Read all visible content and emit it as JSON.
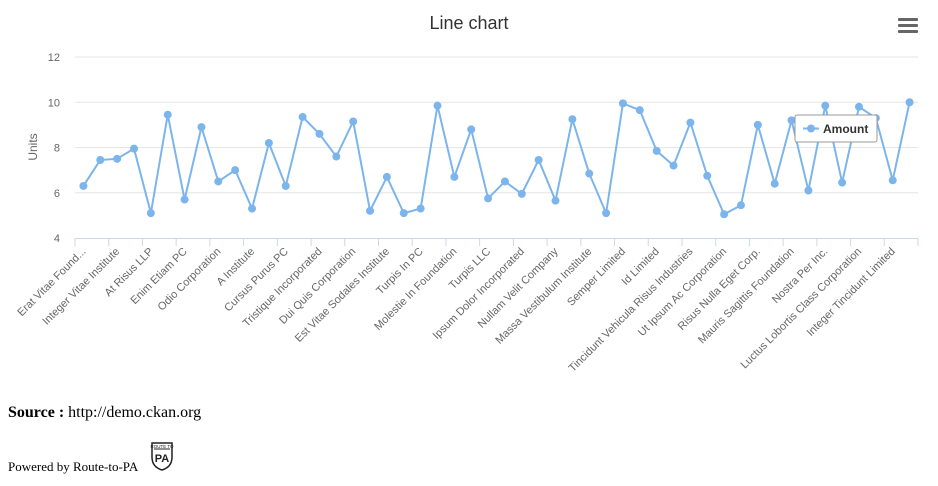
{
  "chart_data": {
    "type": "line",
    "title": "Line chart",
    "ylabel": "Units",
    "ylim": [
      4,
      12
    ],
    "yticks": [
      4,
      6,
      8,
      10,
      12
    ],
    "grid": true,
    "legend": "top-right",
    "categories": [
      "Erat Vitae Found...",
      "",
      "Integer Vitae Institute",
      "",
      "At Risus LLP",
      "",
      "Enim Etiam PC",
      "",
      "Odio Corporation",
      "",
      "A Institute",
      "",
      "Cursus Purus PC",
      "",
      "Tristique Incorporated",
      "",
      "Dui Quis Corporation",
      "",
      "Est Vitae Sodales Institute",
      "",
      "Turpis In PC",
      "",
      "Molestie In Foundation",
      "",
      "Turpis LLC",
      "",
      "Ipsum Dolor Incorporated",
      "",
      "Nullam Velit Company",
      "",
      "Massa Vestibulum Institute",
      "",
      "Semper Limited",
      "",
      "Id Limited",
      "",
      "Tincidunt Vehicula Risus Industries",
      "",
      "Ut Ipsum Ac Corporation",
      "",
      "Risus Nulla Eget Corp.",
      "",
      "Mauris Sagittis Foundation",
      "",
      "Nostra Per Inc.",
      "",
      "Luctus Lobortis Class Corporation",
      "",
      "Integer Tincidunt Limited",
      ""
    ],
    "series": [
      {
        "name": "Amount",
        "color": "#7cb5ec",
        "values": [
          6.3,
          7.45,
          7.5,
          7.95,
          5.1,
          9.45,
          5.7,
          8.9,
          6.5,
          7.0,
          5.3,
          8.2,
          6.3,
          9.35,
          8.6,
          7.6,
          9.15,
          5.2,
          6.7,
          5.1,
          5.3,
          9.85,
          6.7,
          8.8,
          5.75,
          6.5,
          5.95,
          7.45,
          5.65,
          9.25,
          6.85,
          5.1,
          9.95,
          9.65,
          7.85,
          7.2,
          9.1,
          6.75,
          5.05,
          5.45,
          9.0,
          6.4,
          9.2,
          6.1,
          9.85,
          6.45,
          9.8,
          9.3,
          6.55,
          10.0
        ]
      }
    ]
  },
  "source": {
    "label": "Source :",
    "value": "http://demo.ckan.org"
  },
  "footer": {
    "powered_by": "Powered by Route-to-PA",
    "logo_top": "ROUTE TO",
    "logo_main": "PA"
  },
  "menu": {
    "icon": "hamburger-menu-icon"
  }
}
